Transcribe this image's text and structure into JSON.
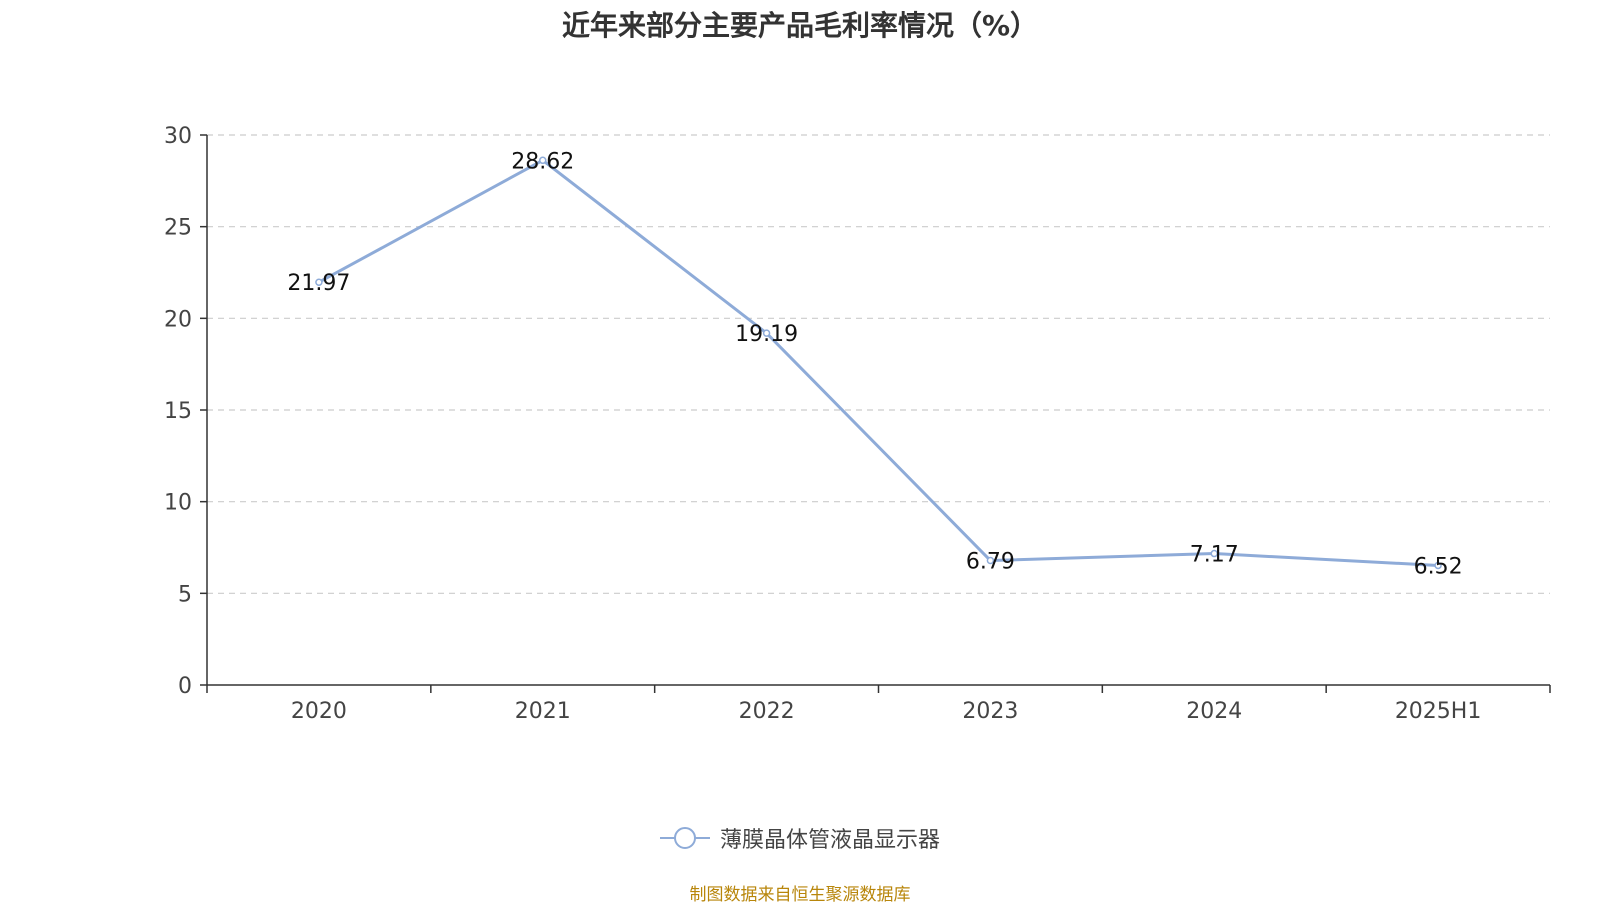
{
  "chart_data": {
    "type": "line",
    "title": "近年来部分主要产品毛利率情况（%）",
    "categories": [
      "2020",
      "2021",
      "2022",
      "2023",
      "2024",
      "2025H1"
    ],
    "series": [
      {
        "name": "薄膜晶体管液晶显示器",
        "values": [
          21.97,
          28.62,
          19.19,
          6.79,
          7.17,
          6.52
        ],
        "color": "#8eabd8"
      }
    ],
    "data_labels": [
      "21.97",
      "28.62",
      "19.19",
      "6.79",
      "7.17",
      "6.52"
    ],
    "y_ticks": [
      "0",
      "5",
      "10",
      "15",
      "20",
      "25",
      "30"
    ],
    "ylim": [
      0,
      30
    ],
    "xlabel": "",
    "ylabel": "",
    "grid": "horizontal dashed",
    "legend_position": "bottom-center"
  },
  "source_note": "制图数据来自恒生聚源数据库",
  "colors": {
    "series_line": "#8eabd8",
    "axis": "#333333",
    "grid": "#cccccc",
    "source_note": "#b8860b"
  }
}
